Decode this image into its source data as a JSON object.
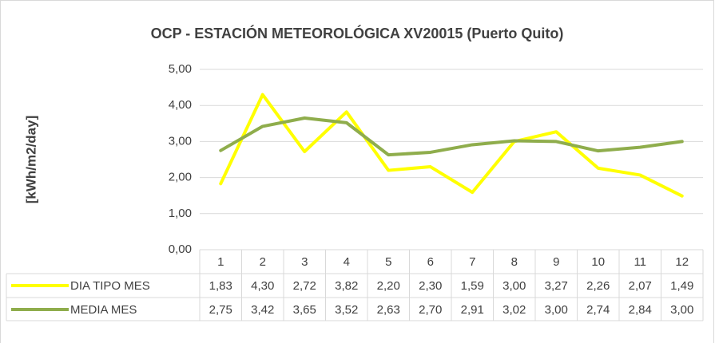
{
  "chart_data": {
    "type": "line",
    "title": "OCP - ESTACIÓN METEOROLÓGICA XV20015 (Puerto Quito)",
    "y_label": "[kWh/m2/day]",
    "categories": [
      "1",
      "2",
      "3",
      "4",
      "5",
      "6",
      "7",
      "8",
      "9",
      "10",
      "11",
      "12"
    ],
    "series": [
      {
        "name": "DIA TIPO MES",
        "color": "#ffff00",
        "values": [
          1.83,
          4.3,
          2.72,
          3.82,
          2.2,
          2.3,
          1.59,
          3.0,
          3.27,
          2.26,
          2.07,
          1.49
        ],
        "value_labels": [
          "1,83",
          "4,30",
          "2,72",
          "3,82",
          "2,20",
          "2,30",
          "1,59",
          "3,00",
          "3,27",
          "2,26",
          "2,07",
          "1,49"
        ]
      },
      {
        "name": "MEDIA MES",
        "color": "#8fad4c",
        "values": [
          2.75,
          3.42,
          3.65,
          3.52,
          2.63,
          2.7,
          2.91,
          3.02,
          3.0,
          2.74,
          2.84,
          3.0
        ],
        "value_labels": [
          "2,75",
          "3,42",
          "3,65",
          "3,52",
          "2,63",
          "2,70",
          "2,91",
          "3,02",
          "3,00",
          "2,74",
          "2,84",
          "3,00"
        ]
      }
    ],
    "ylim": [
      0,
      5
    ],
    "yticks": [
      {
        "value": 0,
        "label": "0,00"
      },
      {
        "value": 1,
        "label": "1,00"
      },
      {
        "value": 2,
        "label": "2,00"
      },
      {
        "value": 3,
        "label": "3,00"
      },
      {
        "value": 4,
        "label": "4,00"
      },
      {
        "value": 5,
        "label": "5,00"
      }
    ],
    "grid": true,
    "data_table": true
  }
}
